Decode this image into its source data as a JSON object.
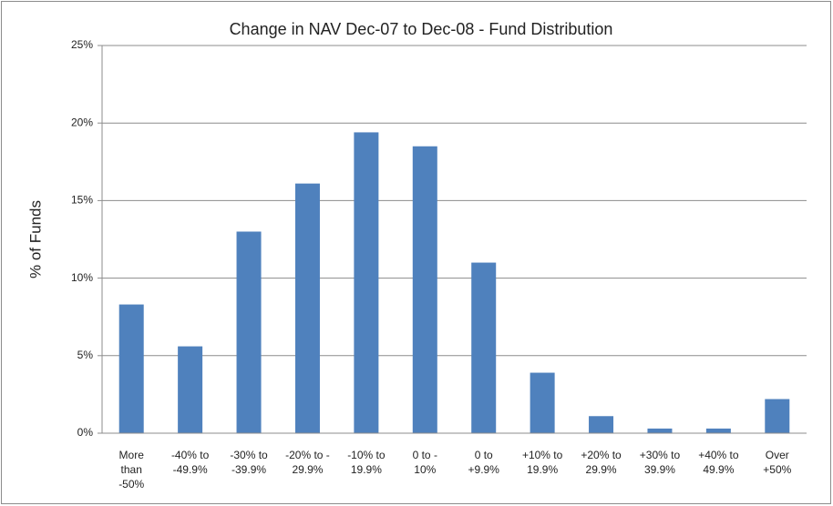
{
  "chart_data": {
    "type": "bar",
    "title": "Change in NAV Dec-07 to Dec-08 - Fund Distribution",
    "y_label": "% of Funds",
    "categories": [
      "More\nthan\n-50%",
      "-40% to\n-49.9%",
      "-30% to\n-39.9%",
      "-20% to -\n29.9%",
      "-10% to\n19.9%",
      "0 to -\n10%",
      "0 to\n+9.9%",
      "+10% to\n19.9%",
      "+20% to\n29.9%",
      "+30% to\n39.9%",
      "+40% to\n49.9%",
      "Over\n+50%"
    ],
    "values": [
      8.3,
      5.6,
      13.0,
      16.1,
      19.4,
      18.5,
      11.0,
      3.9,
      1.1,
      0.3,
      0.3,
      2.2
    ],
    "color": "#4f81bd",
    "ylim": [
      0,
      25
    ],
    "yticks": [
      {
        "value": 0,
        "label": "0%"
      },
      {
        "value": 5,
        "label": "5%"
      },
      {
        "value": 10,
        "label": "10%"
      },
      {
        "value": 15,
        "label": "15%"
      },
      {
        "value": 20,
        "label": "20%"
      },
      {
        "value": 25,
        "label": "25%"
      }
    ],
    "grid": true
  }
}
